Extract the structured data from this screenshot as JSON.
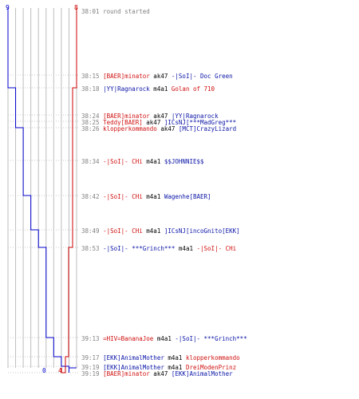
{
  "chart_data": {
    "type": "line",
    "scores": {
      "blue_start": "9",
      "red_start": "8",
      "blue_end": "0",
      "red_end": "4"
    },
    "series": [
      {
        "color": "#0000cc",
        "values": [
          9,
          9,
          8,
          8,
          8,
          7,
          7,
          6,
          5,
          4,
          3,
          2,
          1,
          1,
          0,
          0,
          0
        ]
      },
      {
        "color": "#cc0000",
        "values": [
          8,
          8,
          8,
          7,
          7,
          7,
          7,
          7,
          7,
          7,
          6,
          6,
          5,
          5,
          5,
          5,
          4
        ]
      }
    ]
  },
  "events": [
    {
      "time": "38:01",
      "parts": [
        {
          "text": "round started",
          "c": "gray"
        }
      ]
    },
    {
      "time": "38:15",
      "parts": [
        {
          "text": "[BAER]minator",
          "c": "red"
        },
        {
          "text": " ak47 ",
          "c": "black"
        },
        {
          "text": "-|SoI|- Doc Green",
          "c": "blue"
        }
      ]
    },
    {
      "time": "38:18",
      "parts": [
        {
          "text": "|YY|Ragnarock",
          "c": "blue"
        },
        {
          "text": " m4a1 ",
          "c": "black"
        },
        {
          "text": "Golan of 710",
          "c": "red"
        }
      ]
    },
    {
      "time": "38:24",
      "parts": [
        {
          "text": "[BAER]minator",
          "c": "red"
        },
        {
          "text": " ak47 ",
          "c": "black"
        },
        {
          "text": "|YY|Ragnarock",
          "c": "blue"
        }
      ]
    },
    {
      "time": "38:25",
      "parts": [
        {
          "text": "Teddy[BAER]",
          "c": "red"
        },
        {
          "text": " ak47 ",
          "c": "black"
        },
        {
          "text": "]ICsNJ[***MadGreg***",
          "c": "blue"
        }
      ]
    },
    {
      "time": "38:26",
      "parts": [
        {
          "text": "klopperkommando",
          "c": "red"
        },
        {
          "text": " ak47 ",
          "c": "black"
        },
        {
          "text": "[MCT]CrazyLizard",
          "c": "blue"
        }
      ]
    },
    {
      "time": "38:34",
      "parts": [
        {
          "text": "-|SoI|- CHi",
          "c": "red"
        },
        {
          "text": " m4a1 ",
          "c": "black"
        },
        {
          "text": "$$JOHNNIE$$",
          "c": "blue"
        }
      ]
    },
    {
      "time": "38:42",
      "parts": [
        {
          "text": "-|SoI|- CHi",
          "c": "red"
        },
        {
          "text": " m4a1 ",
          "c": "black"
        },
        {
          "text": "Wagenhe[BAER]",
          "c": "blue"
        }
      ]
    },
    {
      "time": "38:49",
      "parts": [
        {
          "text": "-|SoI|- CHi",
          "c": "red"
        },
        {
          "text": " m4a1 ",
          "c": "black"
        },
        {
          "text": "]ICsNJ[incoGnito[EKK]",
          "c": "blue"
        }
      ]
    },
    {
      "time": "38:53",
      "parts": [
        {
          "text": "-|SoI|- ***Grinch***",
          "c": "blue"
        },
        {
          "text": " m4a1 ",
          "c": "black"
        },
        {
          "text": "-|SoI|- CHi",
          "c": "red"
        }
      ]
    },
    {
      "time": "39:13",
      "parts": [
        {
          "text": "=HIV=BananaJoe",
          "c": "red"
        },
        {
          "text": " m4a1 ",
          "c": "black"
        },
        {
          "text": "-|SoI|- ***Grinch***",
          "c": "blue"
        }
      ]
    },
    {
      "time": "39:17",
      "parts": [
        {
          "text": "[EKK]AnimalMother",
          "c": "blue"
        },
        {
          "text": " m4a1 ",
          "c": "black"
        },
        {
          "text": "klopperkommando",
          "c": "red"
        }
      ]
    },
    {
      "time": "39:19",
      "parts": [
        {
          "text": "[EKK]AnimalMother",
          "c": "blue"
        },
        {
          "text": " m4a1 ",
          "c": "black"
        },
        {
          "text": "DreiModenPrinz",
          "c": "red"
        }
      ]
    },
    {
      "time": "39:19",
      "parts": [
        {
          "text": "[BAER]minator",
          "c": "red"
        },
        {
          "text": " ak47 ",
          "c": "black"
        },
        {
          "text": "[EKK]AnimalMother",
          "c": "blue"
        }
      ]
    }
  ]
}
